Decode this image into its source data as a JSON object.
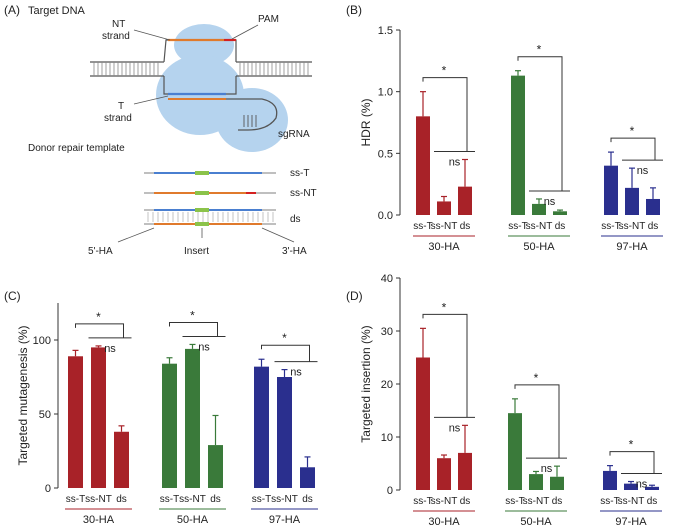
{
  "colors": {
    "red": "#A82228",
    "green": "#3A7A3A",
    "blue": "#2A2F8E",
    "cas9": "#B5D3EE",
    "dna_orange": "#E07A2C",
    "dna_blue": "#4A7FD0",
    "dna_green": "#8BC34A",
    "dna_red": "#D42020"
  },
  "panel_a": {
    "label": "(A)",
    "title": "Target DNA",
    "nt_strand": [
      "NT",
      "strand"
    ],
    "t_strand": [
      "T",
      "strand"
    ],
    "pam": "PAM",
    "sgrna": "sgRNA",
    "donor_title": "Donor repair template",
    "templates": [
      "ss-T",
      "ss-NT",
      "ds"
    ],
    "ha5": "5'-HA",
    "insert": "Insert",
    "ha3": "3'-HA"
  },
  "chart_data": [
    {
      "type": "bar",
      "panel": "(B)",
      "ylabel": "HDR (%)",
      "ylim": [
        0,
        1.5
      ],
      "yticks": [
        0.0,
        0.5,
        1.0,
        1.5
      ],
      "tick_labels": [
        "0.0",
        "0.5",
        "1.0",
        "1.5"
      ],
      "groups": [
        {
          "name": "30-HA",
          "color": "#A82228",
          "categories": [
            "ss-T",
            "ss-NT",
            "ds"
          ],
          "values": [
            0.8,
            0.11,
            0.23
          ],
          "errors": [
            0.2,
            0.04,
            0.22
          ],
          "sig": "*",
          "ns": "ns"
        },
        {
          "name": "50-HA",
          "color": "#3A7A3A",
          "categories": [
            "ss-T",
            "ss-NT",
            "ds"
          ],
          "values": [
            1.13,
            0.09,
            0.03
          ],
          "errors": [
            0.04,
            0.04,
            0.01
          ],
          "sig": "*",
          "ns": "ns"
        },
        {
          "name": "97-HA",
          "color": "#2A2F8E",
          "categories": [
            "ss-T",
            "ss-NT",
            "ds"
          ],
          "values": [
            0.4,
            0.22,
            0.13
          ],
          "errors": [
            0.11,
            0.16,
            0.09
          ],
          "sig": "*",
          "ns": "ns"
        }
      ]
    },
    {
      "type": "bar",
      "panel": "(C)",
      "ylabel": "Targeted mutagenesis (%)",
      "ylim": [
        0,
        125
      ],
      "yticks": [
        0,
        50,
        100
      ],
      "tick_labels": [
        "0",
        "50",
        "100"
      ],
      "groups": [
        {
          "name": "30-HA",
          "color": "#A82228",
          "categories": [
            "ss-T",
            "ss-NT",
            "ds"
          ],
          "values": [
            89,
            95,
            38
          ],
          "errors": [
            4,
            1,
            4
          ],
          "sig": "*",
          "ns": "ns"
        },
        {
          "name": "50-HA",
          "color": "#3A7A3A",
          "categories": [
            "ss-T",
            "ss-NT",
            "ds"
          ],
          "values": [
            84,
            94,
            29
          ],
          "errors": [
            4,
            3,
            20
          ],
          "sig": "*",
          "ns": "ns"
        },
        {
          "name": "97-HA",
          "color": "#2A2F8E",
          "categories": [
            "ss-T",
            "ss-NT",
            "ds"
          ],
          "values": [
            82,
            75,
            14
          ],
          "errors": [
            5,
            5,
            7
          ],
          "sig": "*",
          "ns": "ns"
        }
      ]
    },
    {
      "type": "bar",
      "panel": "(D)",
      "ylabel": "Targeted insertion (%)",
      "ylim": [
        0,
        40
      ],
      "yticks": [
        0,
        10,
        20,
        30,
        40
      ],
      "tick_labels": [
        "0",
        "10",
        "20",
        "30",
        "40"
      ],
      "groups": [
        {
          "name": "30-HA",
          "color": "#A82228",
          "categories": [
            "ss-T",
            "ss-NT",
            "ds"
          ],
          "values": [
            25,
            6,
            7
          ],
          "errors": [
            5.5,
            0.6,
            5.2
          ],
          "sig": "*",
          "ns": "ns"
        },
        {
          "name": "50-HA",
          "color": "#3A7A3A",
          "categories": [
            "ss-T",
            "ss-NT",
            "ds"
          ],
          "values": [
            14.5,
            3,
            2.5
          ],
          "errors": [
            2.7,
            0.5,
            2
          ],
          "sig": "*",
          "ns": "ns"
        },
        {
          "name": "97-HA",
          "color": "#2A2F8E",
          "categories": [
            "ss-T",
            "ss-NT",
            "ds"
          ],
          "values": [
            3.6,
            1.2,
            0.6
          ],
          "errors": [
            1,
            0.4,
            0.3
          ],
          "sig": "*",
          "ns": "ns"
        }
      ]
    }
  ]
}
